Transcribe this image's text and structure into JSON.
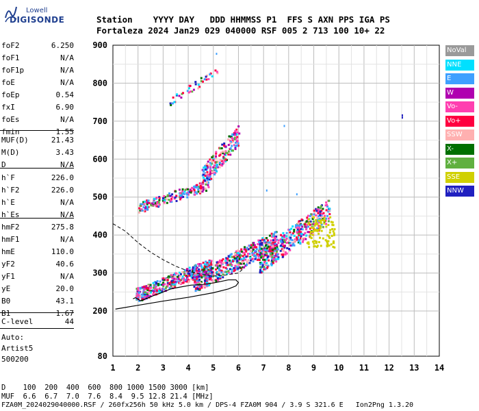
{
  "logo": {
    "top": "Lowell",
    "main": "DIGISONDE"
  },
  "header": {
    "row1": "Station    YYYY DAY   DDD HHMMSS P1  FFS S AXN PPS IGA PS",
    "row2": "Fortaleza 2024 Jan29 029 040000 RSF 005 2 713 100 10+ 22"
  },
  "params": [
    {
      "k": "foF2",
      "v": "6.250"
    },
    {
      "k": "foF1",
      "v": "N/A"
    },
    {
      "k": "foF1p",
      "v": "N/A"
    },
    {
      "k": "foE",
      "v": "N/A"
    },
    {
      "k": "foEp",
      "v": "0.54"
    },
    {
      "k": "fxI",
      "v": "6.90"
    },
    {
      "k": "foEs",
      "v": "N/A"
    },
    {
      "k": "fmin",
      "v": "1.55"
    },
    {
      "k": "MUF(D)",
      "v": "21.43"
    },
    {
      "k": "M(D)",
      "v": "3.43"
    },
    {
      "k": "D",
      "v": "N/A"
    },
    {
      "k": "h`F",
      "v": "226.0"
    },
    {
      "k": "h`F2",
      "v": "226.0"
    },
    {
      "k": "h`E",
      "v": "N/A"
    },
    {
      "k": "h`Es",
      "v": "N/A"
    },
    {
      "k": "hmF2",
      "v": "275.8"
    },
    {
      "k": "hmF1",
      "v": "N/A"
    },
    {
      "k": "hmE",
      "v": "110.0"
    },
    {
      "k": "yF2",
      "v": "40.6"
    },
    {
      "k": "yF1",
      "v": "N/A"
    },
    {
      "k": "yE",
      "v": "20.0"
    },
    {
      "k": "B0",
      "v": "43.1"
    },
    {
      "k": "B1",
      "v": "1.67"
    },
    {
      "k": "C-level",
      "v": "44"
    }
  ],
  "auto": {
    "l1": "Auto:",
    "l2": "Artist5",
    "l3": "500200"
  },
  "footer": {
    "d_row": "D    100  200  400  600  800 1000 1500 3000 [km]",
    "muf_row": "MUF  6.6  6.7  7.0  7.6  8.4  9.5 12.8 21.4 [MHz]",
    "file_row": "FZA0M_2024029040000.RSF / 260fx256h 50 kHz 5.0 km / DPS-4 FZA0M 904 / 3.9 S 321.6 E   Ion2Png 1.3.20"
  },
  "legend": [
    {
      "label": "NoVal",
      "color": "#9a9a9a"
    },
    {
      "label": "NNE",
      "color": "#00e0ff"
    },
    {
      "label": "E",
      "color": "#3fa0ff"
    },
    {
      "label": "W",
      "color": "#b000b0"
    },
    {
      "label": "Vo-",
      "color": "#ff3fb0"
    },
    {
      "label": "Vo+",
      "color": "#ff0040"
    },
    {
      "label": "SSW",
      "color": "#ffb0b0"
    },
    {
      "label": "X-",
      "color": "#007000"
    },
    {
      "label": "X+",
      "color": "#60b040"
    },
    {
      "label": "SSE",
      "color": "#d0d000"
    },
    {
      "label": "NNW",
      "color": "#2020c0"
    }
  ],
  "chart_data": {
    "type": "scatter",
    "xlim": [
      1,
      14
    ],
    "ylim": [
      80,
      900
    ],
    "x_ticks": [
      "1",
      "2",
      "3",
      "4",
      "5",
      "6",
      "7",
      "8",
      "9",
      "10",
      "11",
      "12",
      "13",
      "14"
    ],
    "y_ticks": [
      {
        "v": 900,
        "t": "900"
      },
      {
        "v": 800,
        "t": "800"
      },
      {
        "v": 700,
        "t": "700"
      },
      {
        "v": 600,
        "t": "600"
      },
      {
        "v": 500,
        "t": "500"
      },
      {
        "v": 400,
        "t": "400"
      },
      {
        "v": 300,
        "t": "300"
      },
      {
        "v": 200,
        "t": "200"
      },
      {
        "v": 80,
        "t": "80"
      }
    ],
    "grid": true,
    "clusters": [
      {
        "x0": 1.9,
        "x1": 4.9,
        "y0": 225,
        "y1": 330,
        "n": 420
      },
      {
        "x0": 4.2,
        "x1": 7.5,
        "y0": 250,
        "y1": 400,
        "n": 520
      },
      {
        "x0": 6.8,
        "x1": 9.6,
        "y0": 300,
        "y1": 480,
        "n": 420
      },
      {
        "x0": 2.0,
        "x1": 4.8,
        "y0": 460,
        "y1": 540,
        "n": 180
      },
      {
        "x0": 4.5,
        "x1": 6.0,
        "y0": 520,
        "y1": 680,
        "n": 200
      },
      {
        "x0": 3.2,
        "x1": 4.5,
        "y0": 740,
        "y1": 810,
        "n": 30
      },
      {
        "x0": 4.5,
        "x1": 5.2,
        "y0": 800,
        "y1": 840,
        "n": 12
      }
    ],
    "sse_block": {
      "x0": 8.7,
      "x1": 9.8,
      "y0": 370,
      "y1": 450
    },
    "outliers": [
      [
        5.1,
        880
      ],
      [
        7.8,
        690
      ],
      [
        12.5,
        712
      ],
      [
        12.5,
        718
      ],
      [
        7.1,
        520
      ],
      [
        8.3,
        510
      ]
    ],
    "profile_solid": [
      [
        1.1,
        205
      ],
      [
        2.0,
        215
      ],
      [
        3.0,
        226
      ],
      [
        4.0,
        236
      ],
      [
        5.0,
        248
      ],
      [
        5.6,
        258
      ],
      [
        5.9,
        266
      ],
      [
        6.0,
        275
      ],
      [
        5.9,
        282
      ],
      [
        5.6,
        282
      ],
      [
        5.1,
        275
      ],
      [
        4.6,
        270
      ],
      [
        4.1,
        268
      ],
      [
        3.6,
        262
      ],
      [
        3.3,
        258
      ],
      [
        3.0,
        250
      ],
      [
        2.6,
        240
      ],
      [
        2.3,
        232
      ],
      [
        2.1,
        227
      ],
      [
        1.9,
        235
      ],
      [
        1.8,
        232
      ]
    ],
    "profile_dashed": [
      [
        1.0,
        430
      ],
      [
        1.5,
        410
      ],
      [
        2.0,
        380
      ],
      [
        2.5,
        355
      ],
      [
        3.0,
        335
      ],
      [
        3.5,
        318
      ],
      [
        4.0,
        305
      ],
      [
        4.5,
        297
      ],
      [
        5.0,
        292
      ],
      [
        5.5,
        295
      ],
      [
        6.0,
        300
      ],
      [
        6.2,
        312
      ]
    ]
  }
}
